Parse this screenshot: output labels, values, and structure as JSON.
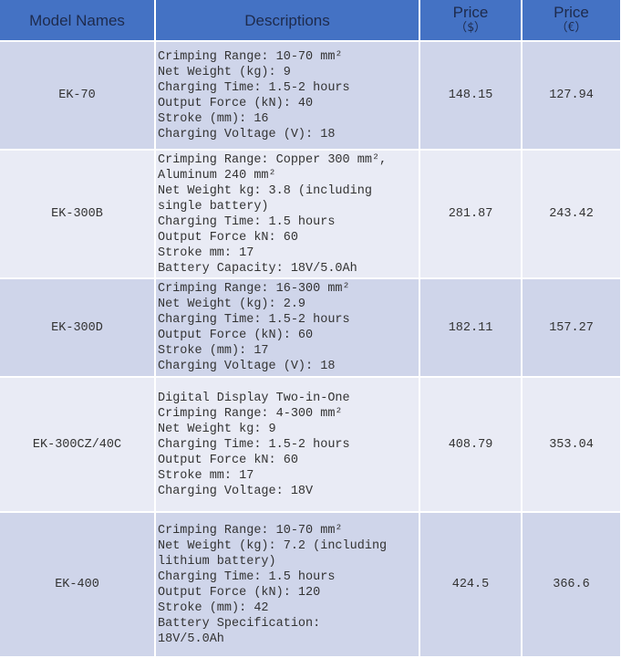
{
  "headers": {
    "model": "Model Names",
    "desc": "Descriptions",
    "price_usd": "Price",
    "price_usd_unit": "（$）",
    "price_eur": "Price",
    "price_eur_unit": "（€）"
  },
  "colors": {
    "header": "#4472c4",
    "row_odd": "#cfd5ea",
    "row_even": "#e9ebf5"
  },
  "rows": [
    {
      "model": "EK-70",
      "desc": [
        "Crimping Range: 10-70 mm²",
        "Net Weight (kg): 9",
        "Charging Time: 1.5-2 hours",
        "Output Force (kN): 40",
        "Stroke (mm): 16",
        "Charging Voltage (V): 18"
      ],
      "usd": "148.15",
      "eur": "127.94"
    },
    {
      "model": "EK-300B",
      "desc": [
        "Crimping Range: Copper 300 mm²,",
        "Aluminum 240 mm²",
        "Net Weight kg: 3.8 (including",
        "single battery)",
        "Charging Time: 1.5 hours",
        "Output Force kN: 60",
        "Stroke mm: 17",
        "Battery Capacity: 18V/5.0Ah"
      ],
      "usd": "281.87",
      "eur": "243.42"
    },
    {
      "model": "EK-300D",
      "desc": [
        "Crimping Range: 16-300 mm²",
        "Net Weight (kg): 2.9",
        "Charging Time: 1.5-2 hours",
        "Output Force (kN): 60",
        "Stroke (mm): 17",
        "Charging Voltage (V): 18"
      ],
      "usd": "182.11",
      "eur": "157.27"
    },
    {
      "model": "EK-300CZ/40C",
      "desc": [
        "Digital Display Two-in-One",
        "Crimping Range: 4-300 mm²",
        "Net Weight kg: 9",
        "Charging Time: 1.5-2 hours",
        "Output Force kN: 60",
        "Stroke mm: 17",
        "Charging Voltage: 18V"
      ],
      "usd": "408.79",
      "eur": "353.04"
    },
    {
      "model": "EK-400",
      "desc": [
        "Crimping Range: 10-70 mm²",
        "Net Weight (kg): 7.2 (including",
        "lithium battery)",
        "Charging Time: 1.5 hours",
        "Output Force (kN): 120",
        "Stroke (mm): 42",
        "Battery Specification:",
        "18V/5.0Ah"
      ],
      "usd": "424.5",
      "eur": "366.6"
    }
  ]
}
